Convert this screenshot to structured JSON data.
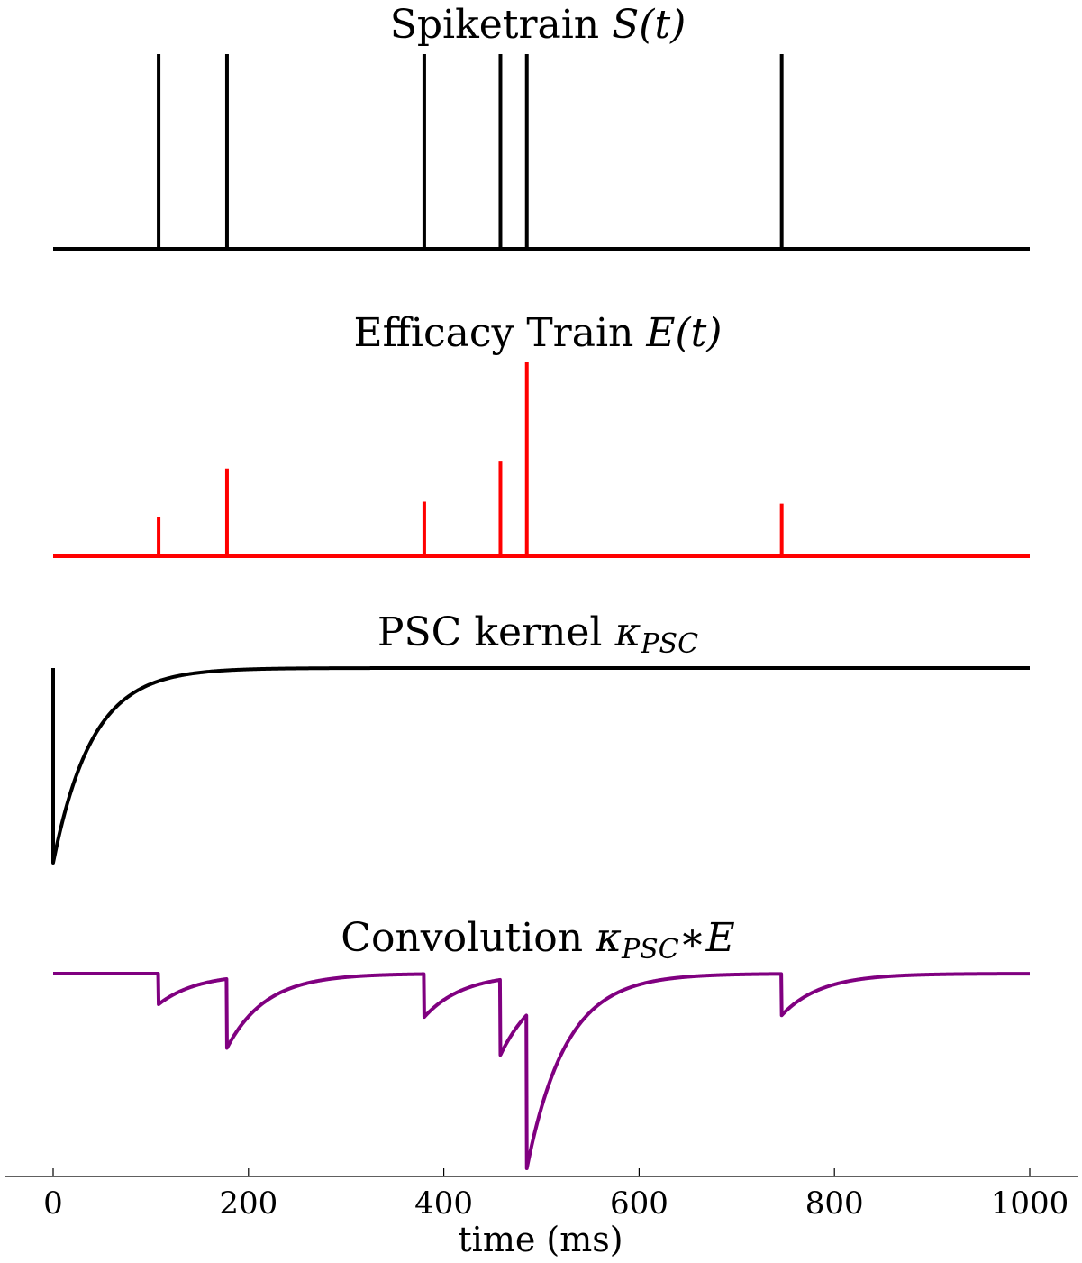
{
  "chart_data": [
    {
      "type": "line",
      "title": "Spiketrain S(t)",
      "title_parts": {
        "text": "Spiketrain ",
        "math": "S(t)"
      },
      "color": "#000000",
      "spike_times": [
        108,
        178,
        380,
        458,
        485,
        746
      ],
      "spike_heights": [
        1,
        1,
        1,
        1,
        1,
        1
      ],
      "xlim": [
        0,
        1000
      ]
    },
    {
      "type": "line",
      "title": "Efficacy Train E(t)",
      "title_parts": {
        "text": "Efficacy Train ",
        "math": "E(t)"
      },
      "color": "#ff0000",
      "spike_times": [
        108,
        178,
        380,
        458,
        485,
        746
      ],
      "spike_heights": [
        0.2,
        0.45,
        0.28,
        0.49,
        1.0,
        0.27
      ],
      "xlim": [
        0,
        1000
      ]
    },
    {
      "type": "line",
      "title": "PSC kernel κPSC",
      "title_parts": {
        "text": "PSC kernel ",
        "math": "κ",
        "sub": "PSC"
      },
      "color": "#000000",
      "kernel": {
        "amplitude": -1,
        "tau_ms": 40
      },
      "xlim": [
        0,
        1000
      ]
    },
    {
      "type": "line",
      "title": "Convolution κPSC∗E",
      "title_parts": {
        "text": "Convolution ",
        "math": "κ",
        "sub": "PSC",
        "tail": "∗E"
      },
      "color": "#800080",
      "xlim": [
        0,
        1000
      ]
    }
  ],
  "x_axis": {
    "label": "time (ms)",
    "ticks": [
      0,
      200,
      400,
      600,
      800,
      1000
    ],
    "tick_labels": [
      "0",
      "200",
      "400",
      "600",
      "800",
      "1000"
    ]
  }
}
